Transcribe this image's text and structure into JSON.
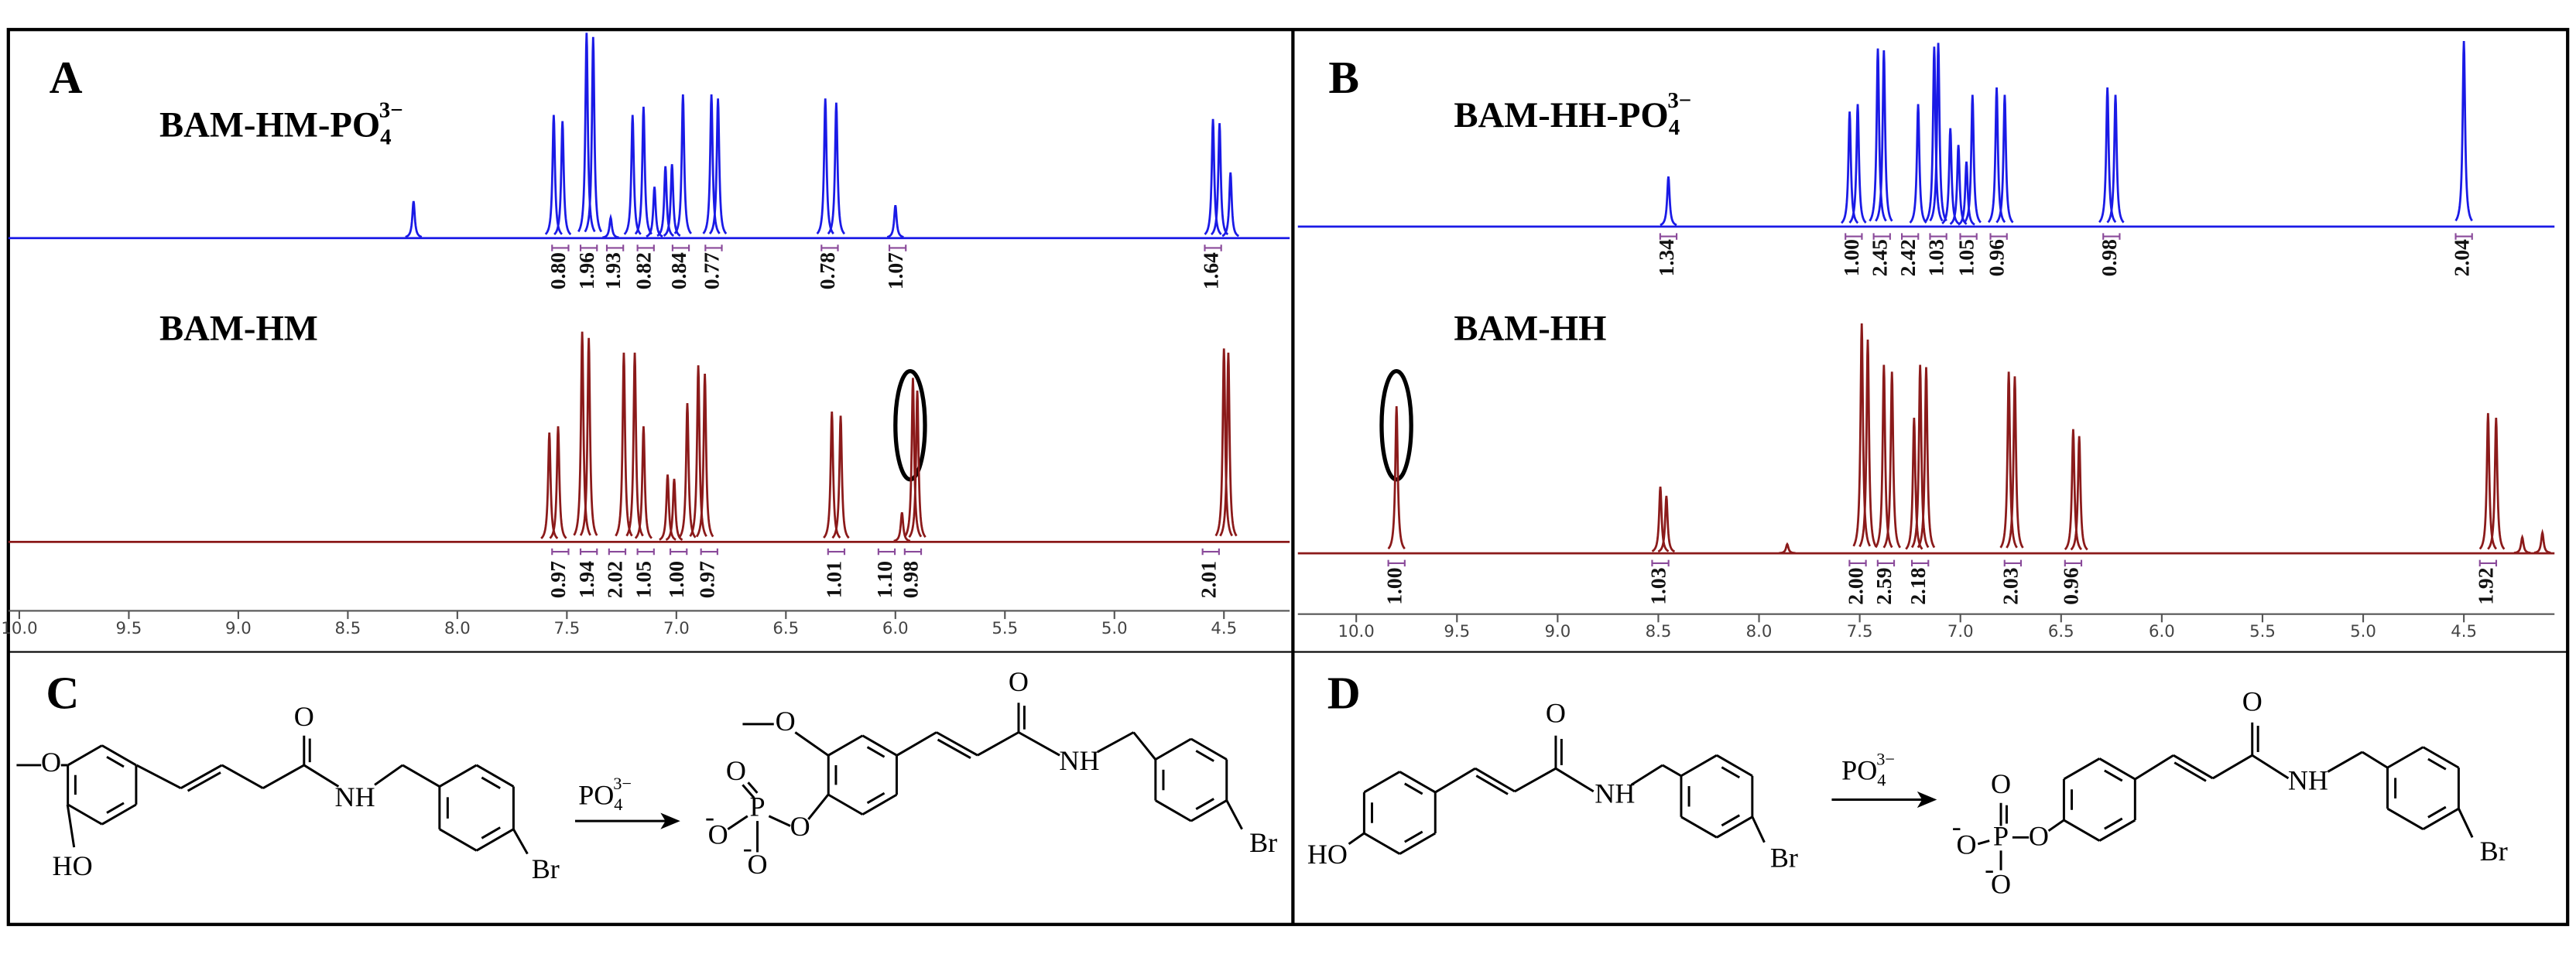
{
  "panels": [
    {
      "letter": "A",
      "xlim": [
        10.05,
        4.2
      ],
      "xticks": [
        {
          "value": 10,
          "label": "10.0"
        },
        9.5,
        {
          "value": 9,
          "label": "9.0"
        },
        8.5,
        {
          "value": 8,
          "label": "8.0"
        },
        7.5,
        {
          "value": 7,
          "label": "7.0"
        },
        6.5,
        {
          "value": 6,
          "label": "6.0"
        },
        5.5,
        {
          "value": 5,
          "label": "5.0"
        },
        4.5
      ],
      "spectra": [
        {
          "name": {
            "text": "BAM-HM-PO",
            "sub": "4",
            "sup": "3−"
          },
          "color": "#1a1ae6",
          "peaks": {
            "ppm": [
              8.2,
              7.56,
              7.52,
              7.41,
              7.38,
              7.3,
              7.2,
              7.15,
              7.1,
              7.05,
              7.02,
              6.97,
              6.84,
              6.81,
              6.32,
              6.27,
              6.0,
              4.55,
              4.52,
              4.47
            ],
            "height": [
              0.18,
              0.6,
              0.57,
              1.0,
              0.98,
              0.1,
              0.6,
              0.64,
              0.25,
              0.35,
              0.36,
              0.7,
              0.7,
              0.68,
              0.68,
              0.66,
              0.16,
              0.58,
              0.56,
              0.32
            ]
          },
          "integrals": {
            "ppm": [
              7.53,
              7.4,
              7.28,
              7.14,
              6.98,
              6.83,
              6.3,
              5.99,
              4.55
            ],
            "labels": [
              "0.80",
              "1.96",
              "1.93",
              "0.82",
              "0.84",
              "0.77",
              "0.78",
              "1.07",
              "1.64"
            ]
          }
        },
        {
          "name": {
            "text": "BAM-HM"
          },
          "color": "#8b1a1a",
          "peaks": {
            "ppm": [
              7.58,
              7.54,
              7.43,
              7.4,
              7.24,
              7.19,
              7.15,
              7.04,
              7.01,
              6.95,
              6.9,
              6.87,
              6.29,
              6.25,
              5.97,
              5.92,
              5.9,
              4.5,
              4.48
            ],
            "height": [
              0.52,
              0.55,
              1.0,
              0.97,
              0.9,
              0.9,
              0.55,
              0.32,
              0.3,
              0.66,
              0.84,
              0.8,
              0.62,
              0.6,
              0.14,
              0.78,
              0.72,
              0.92,
              0.9
            ]
          },
          "integrals": {
            "ppm": [
              7.53,
              7.4,
              7.27,
              7.14,
              6.99,
              6.85,
              6.27,
              6.04,
              5.92,
              4.56
            ],
            "labels": [
              "0.97",
              "1.94",
              "2.02",
              "1.05",
              "1.00",
              "0.97",
              "1.01",
              "1.10",
              "0.98",
              "2.01"
            ]
          }
        }
      ]
    },
    {
      "letter": "B",
      "xlim": [
        10.29,
        4.05
      ],
      "xticks": [
        {
          "value": 10,
          "label": "10.0"
        },
        9.5,
        {
          "value": 9,
          "label": "9.0"
        },
        8.5,
        {
          "value": 8,
          "label": "8.0"
        },
        7.5,
        {
          "value": 7,
          "label": "7.0"
        },
        6.5,
        {
          "value": 6,
          "label": "6.0"
        },
        5.5,
        {
          "value": 5,
          "label": "5.0"
        },
        4.5
      ],
      "spectra": [
        {
          "name": {
            "text": "BAM-HH-PO",
            "sub": "4",
            "sup": "3−"
          },
          "color": "#1a1ae6",
          "peaks": {
            "ppm": [
              8.45,
              7.55,
              7.51,
              7.41,
              7.38,
              7.21,
              7.13,
              7.11,
              7.05,
              7.01,
              6.97,
              6.94,
              6.82,
              6.78,
              6.27,
              6.23,
              4.5
            ],
            "height": [
              0.27,
              0.62,
              0.66,
              0.96,
              0.95,
              0.66,
              0.97,
              0.99,
              0.53,
              0.44,
              0.35,
              0.71,
              0.75,
              0.71,
              0.75,
              0.71,
              1.0
            ]
          },
          "integrals": {
            "ppm": [
              8.45,
              7.53,
              7.39,
              7.25,
              7.11,
              6.96,
              6.81,
              6.25,
              4.5
            ],
            "labels": [
              "1.34",
              "1.00",
              "2.45",
              "2.42",
              "1.03",
              "1.05",
              "0.96",
              "0.98",
              "2.04"
            ]
          }
        },
        {
          "name": {
            "text": "BAM-HH"
          },
          "color": "#8b1a1a",
          "peaks": {
            "ppm": [
              9.8,
              8.49,
              8.46,
              7.86,
              7.49,
              7.46,
              7.38,
              7.34,
              7.23,
              7.2,
              7.17,
              6.76,
              6.73,
              6.44,
              6.41,
              4.38,
              4.34,
              4.21,
              4.11
            ],
            "height": [
              0.64,
              0.29,
              0.25,
              0.04,
              1.0,
              0.93,
              0.82,
              0.79,
              0.59,
              0.82,
              0.81,
              0.79,
              0.77,
              0.54,
              0.51,
              0.61,
              0.59,
              0.07,
              0.09
            ]
          },
          "integrals": {
            "ppm": [
              9.8,
              8.49,
              7.51,
              7.37,
              7.2,
              6.74,
              6.44,
              4.38
            ],
            "labels": [
              "1.00",
              "1.03",
              "2.00",
              "2.59",
              "2.18",
              "2.03",
              "0.96",
              "1.92"
            ]
          }
        }
      ]
    }
  ],
  "schemes": [
    {
      "letter": "C",
      "reagent": {
        "text": "PO",
        "sub": "4",
        "sup": "3−"
      },
      "atoms": [
        "O",
        "O",
        "NH",
        "HO",
        "Br",
        "O",
        "O",
        "P",
        "O",
        "O",
        "O",
        "-",
        "-",
        "O",
        "NH",
        "Br"
      ]
    },
    {
      "letter": "D",
      "reagent": {
        "text": "PO",
        "sub": "4",
        "sup": "3−"
      },
      "atoms": [
        "O",
        "NH",
        "HO",
        "Br",
        "O",
        "P",
        "O",
        "O",
        "O",
        "-",
        "-",
        "O",
        "NH",
        "Br"
      ]
    }
  ]
}
